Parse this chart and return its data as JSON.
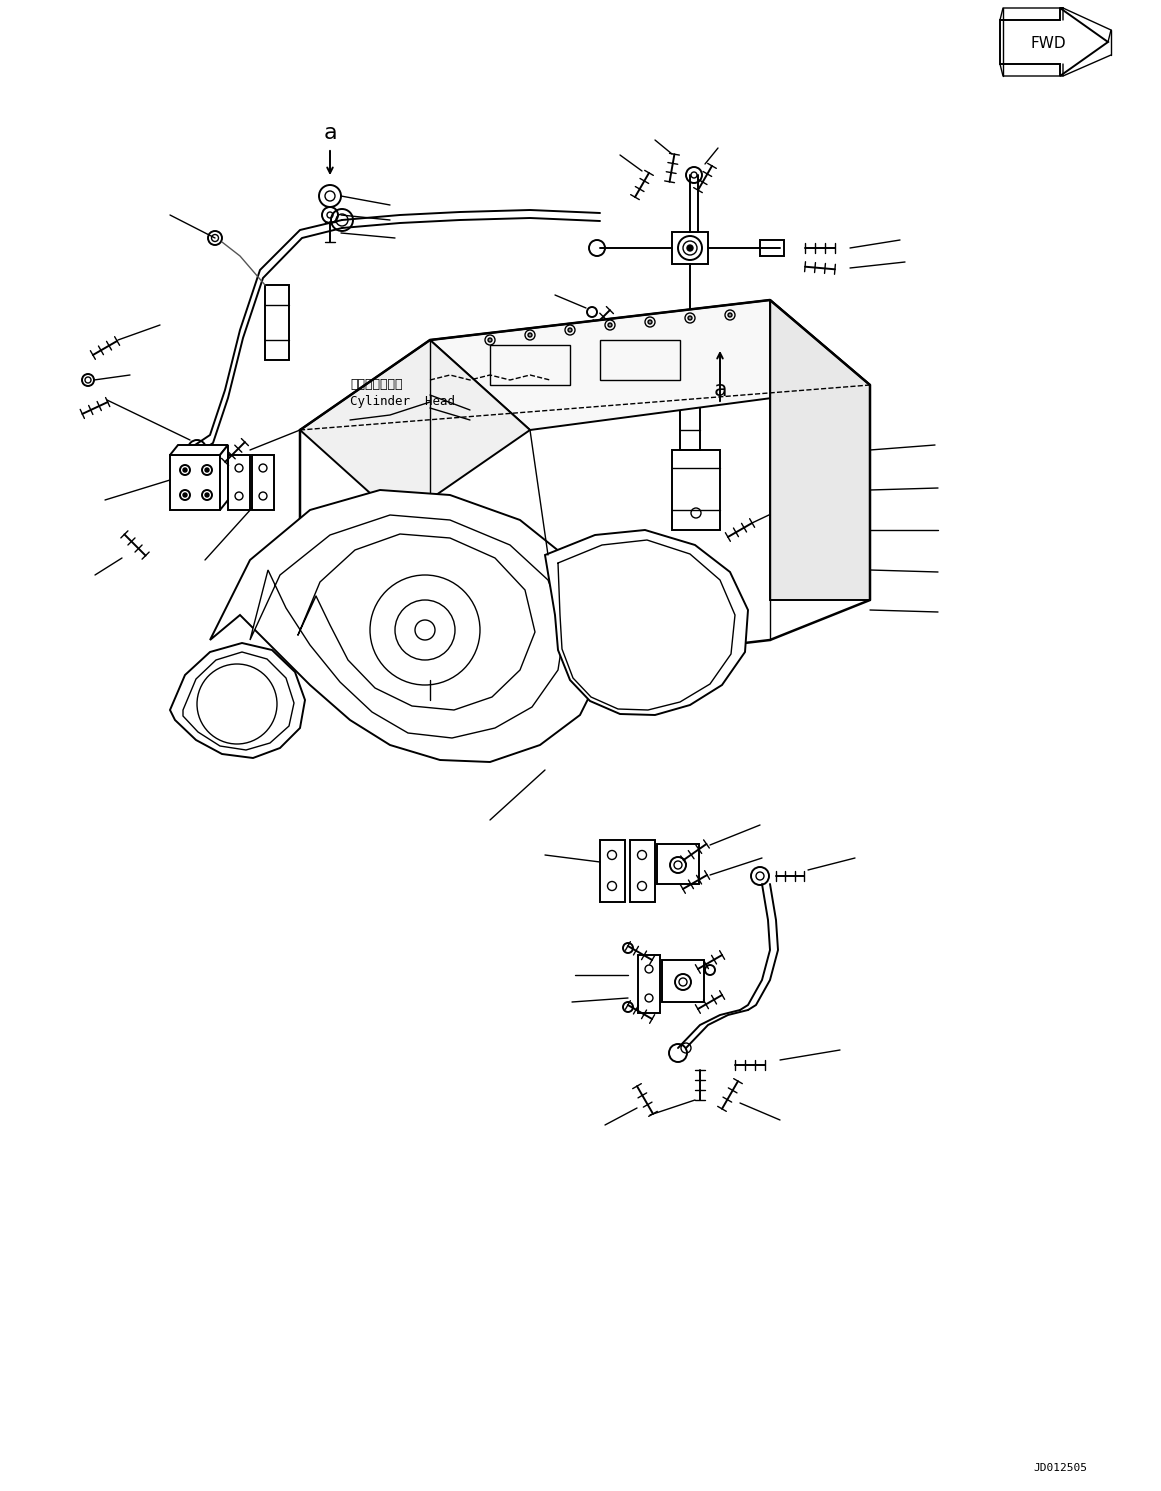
{
  "fig_width": 11.61,
  "fig_height": 14.91,
  "dpi": 100,
  "bg_color": "#ffffff",
  "line_color": "#000000",
  "fwd_label": "FWD",
  "label_a": "a",
  "cylinder_head_jp": "シリンダヘッド",
  "cylinder_head_en": "Cylinder  Head",
  "part_number": "JD012505"
}
